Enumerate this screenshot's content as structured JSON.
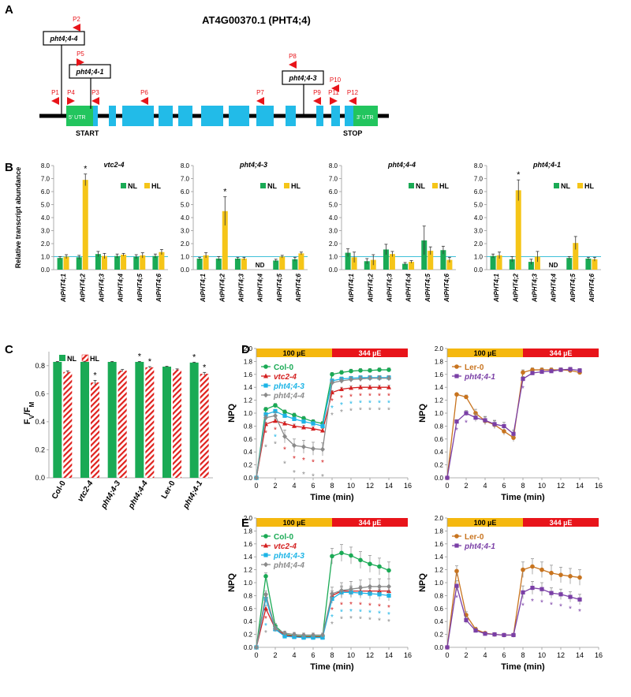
{
  "colors": {
    "green": "#1aaa55",
    "yellow": "#f5c518",
    "blue": "#1cb4e6",
    "red": "#d42020",
    "gray": "#8a8a8a",
    "orange": "#c8741f",
    "purple": "#7a3fa6",
    "hatch": "#e0211d",
    "cyan_line": "#3fc1d9",
    "gl_orange": "#f5b80f",
    "gl_red": "#e8141a"
  },
  "panelA": {
    "label": "A",
    "gene_title": "AT4G00370.1 (PHT4;4)",
    "utr5": "5' UTR",
    "utr3": "3' UTR",
    "start": "START",
    "stop": "STOP",
    "insertions": [
      "pht4;4-4",
      "pht4;4-1",
      "pht4;4-3"
    ],
    "primers": [
      "P1",
      "P2",
      "P3",
      "P4",
      "P5",
      "P6",
      "P7",
      "P8",
      "P9",
      "P10",
      "P11",
      "P12"
    ]
  },
  "chart_data": [
    {
      "panel": "B",
      "type": "bar",
      "title": "vtc2-4",
      "ylabel": "Relative transcript abundance",
      "ylim": [
        0,
        8
      ],
      "yticks": [
        "0.0",
        "1.0",
        "2.0",
        "3.0",
        "4.0",
        "5.0",
        "6.0",
        "7.0",
        "8.0"
      ],
      "categories": [
        "AtPHT4;1",
        "AtPHT4;2",
        "AtPHT4;3",
        "AtPHT4;4",
        "AtPHT4;5",
        "AtPHT4;6"
      ],
      "series": [
        {
          "name": "NL",
          "values": [
            0.9,
            0.95,
            1.2,
            1.05,
            1.0,
            1.05
          ],
          "errors": [
            0.1,
            0.15,
            0.2,
            0.15,
            0.15,
            0.15
          ]
        },
        {
          "name": "HL",
          "values": [
            1.0,
            6.9,
            1.05,
            1.15,
            1.1,
            1.35
          ],
          "errors": [
            0.15,
            0.45,
            0.2,
            0.1,
            0.2,
            0.2
          ]
        }
      ],
      "annotations": [
        {
          "category": "AtPHT4;2",
          "text": "*"
        }
      ],
      "nd": []
    },
    {
      "panel": "B",
      "type": "bar",
      "title": "pht4;4-3",
      "ylim": [
        0,
        8
      ],
      "yticks": [
        "0.0",
        "1.0",
        "2.0",
        "3.0",
        "4.0",
        "5.0",
        "6.0",
        "7.0",
        "8.0"
      ],
      "categories": [
        "AtPHT4;1",
        "AtPHT4;2",
        "AtPHT4;3",
        "AtPHT4;4",
        "AtPHT4;5",
        "AtPHT4;6"
      ],
      "series": [
        {
          "name": "NL",
          "values": [
            0.85,
            0.85,
            0.85,
            null,
            0.7,
            0.8
          ],
          "errors": [
            0.1,
            0.15,
            0.1,
            0,
            0.1,
            0.15
          ]
        },
        {
          "name": "HL",
          "values": [
            1.1,
            4.5,
            0.85,
            null,
            1.0,
            1.25
          ],
          "errors": [
            0.2,
            1.1,
            0.1,
            0,
            0.1,
            0.1
          ]
        }
      ],
      "annotations": [
        {
          "category": "AtPHT4;2",
          "text": "*"
        }
      ],
      "nd": [
        "AtPHT4;4"
      ]
    },
    {
      "panel": "B",
      "type": "bar",
      "title": "pht4;4-4",
      "ylim": [
        0,
        8
      ],
      "yticks": [
        "0.0",
        "1.0",
        "2.0",
        "3.0",
        "4.0",
        "5.0",
        "6.0",
        "7.0",
        "8.0"
      ],
      "categories": [
        "AtPHT4;1",
        "AtPHT4;2",
        "AtPHT4;3",
        "AtPHT4;4",
        "AtPHT4;5",
        "AtPHT4;6"
      ],
      "series": [
        {
          "name": "NL",
          "values": [
            1.3,
            0.65,
            1.55,
            0.45,
            2.25,
            1.5
          ],
          "errors": [
            0.3,
            0.2,
            0.4,
            0.1,
            1.1,
            0.3
          ]
        },
        {
          "name": "HL",
          "values": [
            0.95,
            0.75,
            1.2,
            0.6,
            1.45,
            0.75
          ],
          "errors": [
            0.4,
            0.4,
            0.2,
            0.1,
            0.3,
            0.2
          ]
        }
      ],
      "annotations": [],
      "nd": []
    },
    {
      "panel": "B",
      "type": "bar",
      "title": "pht4;4-1",
      "ylim": [
        0,
        8
      ],
      "yticks": [
        "0.0",
        "1.0",
        "2.0",
        "3.0",
        "4.0",
        "5.0",
        "6.0",
        "7.0",
        "8.0"
      ],
      "categories": [
        "AtPHT4;1",
        "AtPHT4;2",
        "AtPHT4;3",
        "AtPHT4;4",
        "AtPHT4;5",
        "AtPHT4;6"
      ],
      "series": [
        {
          "name": "NL",
          "values": [
            1.05,
            0.8,
            0.6,
            null,
            0.9,
            0.85
          ],
          "errors": [
            0.15,
            0.2,
            0.2,
            0,
            0.1,
            0.1
          ]
        },
        {
          "name": "HL",
          "values": [
            1.1,
            6.1,
            1.0,
            null,
            2.05,
            0.8
          ],
          "errors": [
            0.25,
            0.8,
            0.4,
            0,
            0.5,
            0.15
          ]
        }
      ],
      "annotations": [
        {
          "category": "AtPHT4;2",
          "text": "*"
        }
      ],
      "nd": [
        "AtPHT4;4"
      ]
    },
    {
      "panel": "C",
      "type": "bar",
      "ylabel": "Fv/FM",
      "ylim": [
        0,
        0.9
      ],
      "yticks": [
        "0.0",
        "0.2",
        "0.4",
        "0.6",
        "0.8"
      ],
      "categories": [
        "Col-0",
        "vtc2-4",
        "pht4;4-3",
        "pht4;4-4",
        "Ler-0",
        "pht4;4-1"
      ],
      "series": [
        {
          "name": "NL",
          "values": [
            0.827,
            0.827,
            0.827,
            0.827,
            0.793,
            0.822
          ],
          "errors": [
            0.003,
            0.003,
            0.003,
            0.003,
            0.003,
            0.003
          ]
        },
        {
          "name": "HL",
          "values": [
            0.755,
            0.68,
            0.765,
            0.788,
            0.772,
            0.742
          ],
          "errors": [
            0.008,
            0.015,
            0.008,
            0.005,
            0.005,
            0.01
          ]
        }
      ],
      "star_nl": [
        false,
        false,
        false,
        true,
        false,
        true
      ],
      "star_hl": [
        false,
        true,
        false,
        true,
        false,
        true
      ]
    },
    {
      "panel": "D",
      "type": "line",
      "ylabel": "NPQ",
      "xlabel": "Time (min)",
      "xlim": [
        0,
        16
      ],
      "ylim": [
        0,
        2
      ],
      "xticks": [
        "0",
        "2",
        "4",
        "6",
        "8",
        "10",
        "12",
        "14",
        "16"
      ],
      "yticks": [
        "0.0",
        "0.2",
        "0.4",
        "0.6",
        "0.8",
        "1.0",
        "1.2",
        "1.4",
        "1.6",
        "1.8",
        "2.0"
      ],
      "light_bar": [
        "100 µE",
        "344 µE"
      ],
      "x": [
        0,
        1,
        2,
        3,
        4,
        5,
        6,
        7,
        8,
        9,
        10,
        11,
        12,
        13,
        14
      ],
      "series": [
        {
          "name": "Col-0",
          "values": [
            0,
            1.06,
            1.12,
            1.02,
            0.97,
            0.92,
            0.87,
            0.84,
            1.6,
            1.63,
            1.65,
            1.66,
            1.66,
            1.67,
            1.67
          ],
          "errors": [
            0,
            0.03,
            0.03,
            0.03,
            0.03,
            0.03,
            0.03,
            0.03,
            0.03,
            0.03,
            0.03,
            0.03,
            0.03,
            0.03,
            0.03
          ]
        },
        {
          "name": "vtc2-4",
          "values": [
            0,
            0.83,
            0.88,
            0.84,
            0.8,
            0.78,
            0.76,
            0.73,
            1.32,
            1.37,
            1.39,
            1.4,
            1.4,
            1.4,
            1.4
          ],
          "errors": [
            0,
            0.03,
            0.03,
            0.03,
            0.03,
            0.03,
            0.03,
            0.03,
            0.03,
            0.03,
            0.03,
            0.03,
            0.03,
            0.03,
            0.03
          ]
        },
        {
          "name": "pht4;4-3",
          "values": [
            0,
            0.98,
            1.03,
            0.96,
            0.91,
            0.87,
            0.84,
            0.8,
            1.5,
            1.53,
            1.54,
            1.55,
            1.55,
            1.55,
            1.55
          ],
          "errors": [
            0,
            0.03,
            0.03,
            0.03,
            0.03,
            0.03,
            0.03,
            0.03,
            0.03,
            0.03,
            0.03,
            0.03,
            0.03,
            0.03,
            0.03
          ]
        },
        {
          "name": "pht4;4-4",
          "values": [
            0,
            0.93,
            0.96,
            0.64,
            0.5,
            0.48,
            0.45,
            0.44,
            1.47,
            1.5,
            1.52,
            1.53,
            1.54,
            1.54,
            1.54
          ],
          "errors": [
            0,
            0.04,
            0.06,
            0.1,
            0.1,
            0.1,
            0.1,
            0.1,
            0.04,
            0.04,
            0.04,
            0.04,
            0.04,
            0.04,
            0.04
          ]
        }
      ]
    },
    {
      "panel": "D-right",
      "type": "line",
      "ylabel": "NPQ",
      "xlabel": "Time (min)",
      "xlim": [
        0,
        16
      ],
      "ylim": [
        0,
        2
      ],
      "light_bar": [
        "100 µE",
        "344 µE"
      ],
      "x": [
        0,
        1,
        2,
        3,
        4,
        5,
        6,
        7,
        8,
        9,
        10,
        11,
        12,
        13,
        14
      ],
      "series": [
        {
          "name": "Ler-0",
          "values": [
            0,
            1.29,
            1.25,
            1.0,
            0.88,
            0.82,
            0.72,
            0.62,
            1.63,
            1.67,
            1.67,
            1.67,
            1.67,
            1.66,
            1.63
          ],
          "errors": [
            0,
            0.02,
            0.03,
            0.06,
            0.06,
            0.06,
            0.06,
            0.06,
            0.04,
            0.03,
            0.03,
            0.03,
            0.03,
            0.03,
            0.03
          ]
        },
        {
          "name": "pht4;4-1",
          "values": [
            0,
            0.87,
            1.0,
            0.93,
            0.89,
            0.83,
            0.8,
            0.68,
            1.53,
            1.62,
            1.64,
            1.65,
            1.67,
            1.68,
            1.66
          ],
          "errors": [
            0,
            0.03,
            0.04,
            0.06,
            0.06,
            0.06,
            0.06,
            0.06,
            0.04,
            0.03,
            0.03,
            0.03,
            0.03,
            0.03,
            0.03
          ]
        }
      ]
    },
    {
      "panel": "E",
      "type": "line",
      "ylabel": "NPQ",
      "xlabel": "Time (min)",
      "xlim": [
        0,
        16
      ],
      "ylim": [
        0,
        2
      ],
      "light_bar": [
        "100 µE",
        "344 µE"
      ],
      "x": [
        0,
        1,
        2,
        3,
        4,
        5,
        6,
        7,
        8,
        9,
        10,
        11,
        12,
        13,
        14
      ],
      "series": [
        {
          "name": "Col-0",
          "values": [
            0,
            1.1,
            0.33,
            0.2,
            0.18,
            0.17,
            0.17,
            0.17,
            1.41,
            1.46,
            1.42,
            1.35,
            1.29,
            1.25,
            1.19
          ],
          "errors": [
            0,
            0.05,
            0.04,
            0.03,
            0.03,
            0.03,
            0.03,
            0.03,
            0.12,
            0.13,
            0.13,
            0.13,
            0.13,
            0.13,
            0.13
          ]
        },
        {
          "name": "vtc2-4",
          "values": [
            0,
            0.6,
            0.29,
            0.19,
            0.17,
            0.16,
            0.16,
            0.16,
            0.8,
            0.87,
            0.87,
            0.87,
            0.87,
            0.87,
            0.87
          ],
          "errors": [
            0,
            0.05,
            0.04,
            0.03,
            0.03,
            0.03,
            0.03,
            0.03,
            0.07,
            0.08,
            0.08,
            0.08,
            0.08,
            0.08,
            0.08
          ]
        },
        {
          "name": "pht4;4-3",
          "values": [
            0,
            0.75,
            0.28,
            0.17,
            0.16,
            0.15,
            0.15,
            0.15,
            0.75,
            0.85,
            0.85,
            0.84,
            0.83,
            0.82,
            0.8
          ],
          "errors": [
            0,
            0.05,
            0.04,
            0.03,
            0.03,
            0.03,
            0.03,
            0.03,
            0.07,
            0.08,
            0.08,
            0.08,
            0.08,
            0.08,
            0.08
          ]
        },
        {
          "name": "pht4;4-4",
          "values": [
            0,
            0.82,
            0.29,
            0.22,
            0.2,
            0.19,
            0.19,
            0.19,
            0.83,
            0.88,
            0.9,
            0.92,
            0.94,
            0.94,
            0.94
          ],
          "errors": [
            0,
            0.05,
            0.04,
            0.03,
            0.03,
            0.03,
            0.03,
            0.03,
            0.1,
            0.12,
            0.12,
            0.12,
            0.12,
            0.12,
            0.12
          ]
        }
      ]
    },
    {
      "panel": "E-right",
      "type": "line",
      "ylabel": "NPQ",
      "xlabel": "Time (min)",
      "xlim": [
        0,
        16
      ],
      "ylim": [
        0,
        2
      ],
      "light_bar": [
        "100 µE",
        "344 µE"
      ],
      "x": [
        0,
        1,
        2,
        3,
        4,
        5,
        6,
        7,
        8,
        9,
        10,
        11,
        12,
        13,
        14
      ],
      "series": [
        {
          "name": "Ler-0",
          "values": [
            0,
            1.18,
            0.5,
            0.28,
            0.22,
            0.2,
            0.19,
            0.19,
            1.2,
            1.25,
            1.2,
            1.15,
            1.12,
            1.1,
            1.08
          ],
          "errors": [
            0,
            0.08,
            0.05,
            0.03,
            0.02,
            0.02,
            0.02,
            0.02,
            0.12,
            0.12,
            0.12,
            0.12,
            0.12,
            0.12,
            0.12
          ]
        },
        {
          "name": "pht4;4-1",
          "values": [
            0,
            0.95,
            0.42,
            0.26,
            0.21,
            0.2,
            0.19,
            0.19,
            0.85,
            0.92,
            0.9,
            0.84,
            0.82,
            0.78,
            0.74
          ],
          "errors": [
            0,
            0.08,
            0.05,
            0.03,
            0.02,
            0.02,
            0.02,
            0.02,
            0.1,
            0.1,
            0.1,
            0.08,
            0.08,
            0.08,
            0.08
          ]
        }
      ]
    }
  ]
}
